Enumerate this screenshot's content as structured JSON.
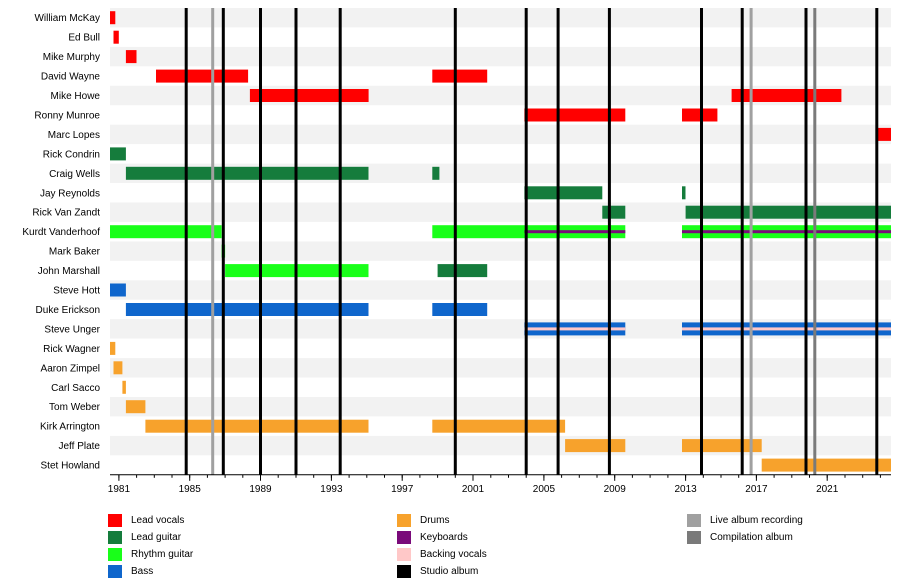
{
  "chart_data": {
    "type": "timeline",
    "x_range": [
      1980.5,
      2024.6
    ],
    "x_ticks": [
      1981,
      1985,
      1989,
      1993,
      1997,
      2001,
      2005,
      2009,
      2013,
      2017,
      2021
    ],
    "x_tick_labels": [
      "1981",
      "1985",
      "1989",
      "1993",
      "1997",
      "2001",
      "2005",
      "2009",
      "2013",
      "2017",
      "2021"
    ],
    "roles": [
      {
        "key": "lead_vocals",
        "label": "Lead vocals",
        "color": "#ff0000"
      },
      {
        "key": "lead_guitar",
        "label": "Lead guitar",
        "color": "#157c3c"
      },
      {
        "key": "rhythm_guitar",
        "label": "Rhythm guitar",
        "color": "#19ff19"
      },
      {
        "key": "bass",
        "label": "Bass",
        "color": "#0f66cc"
      },
      {
        "key": "drums",
        "label": "Drums",
        "color": "#f7a22c"
      },
      {
        "key": "keyboards",
        "label": "Keyboards",
        "color": "#7a0a7a"
      },
      {
        "key": "backing_vocals",
        "label": "Backing vocals",
        "color": "#ffc8c8"
      },
      {
        "key": "studio_album",
        "label": "Studio album",
        "color": "#000000"
      },
      {
        "key": "live_album",
        "label": "Live album recording",
        "color": "#a0a0a0"
      },
      {
        "key": "compilation_album",
        "label": "Compilation album",
        "color": "#7a7a7a"
      }
    ],
    "members": [
      {
        "name": "William McKay",
        "periods": [
          {
            "role": "lead_vocals",
            "from": 1980.5,
            "to": 1980.8
          }
        ]
      },
      {
        "name": "Ed Bull",
        "periods": [
          {
            "role": "lead_vocals",
            "from": 1980.7,
            "to": 1981.0
          }
        ]
      },
      {
        "name": "Mike Murphy",
        "periods": [
          {
            "role": "lead_vocals",
            "from": 1981.4,
            "to": 1982.0
          }
        ]
      },
      {
        "name": "David Wayne",
        "periods": [
          {
            "role": "lead_vocals",
            "from": 1983.1,
            "to": 1988.3
          },
          {
            "role": "lead_vocals",
            "from": 1998.7,
            "to": 2001.8
          }
        ]
      },
      {
        "name": "Mike Howe",
        "periods": [
          {
            "role": "lead_vocals",
            "from": 1988.4,
            "to": 1995.1
          },
          {
            "role": "lead_vocals",
            "from": 2015.6,
            "to": 2021.8
          }
        ]
      },
      {
        "name": "Ronny Munroe",
        "periods": [
          {
            "role": "lead_vocals",
            "from": 2003.9,
            "to": 2009.6
          },
          {
            "role": "lead_vocals",
            "from": 2012.8,
            "to": 2014.8
          }
        ]
      },
      {
        "name": "Marc Lopes",
        "periods": [
          {
            "role": "lead_vocals",
            "from": 2023.8,
            "to": 2024.6
          }
        ]
      },
      {
        "name": "Rick Condrin",
        "periods": [
          {
            "role": "lead_guitar",
            "from": 1980.5,
            "to": 1981.4
          }
        ]
      },
      {
        "name": "Craig Wells",
        "periods": [
          {
            "role": "lead_guitar",
            "from": 1981.4,
            "to": 1995.1
          },
          {
            "role": "lead_guitar",
            "from": 1998.7,
            "to": 1999.1
          }
        ]
      },
      {
        "name": "Jay Reynolds",
        "periods": [
          {
            "role": "lead_guitar",
            "from": 2003.9,
            "to": 2008.3
          },
          {
            "role": "lead_guitar",
            "from": 2012.8,
            "to": 2013.0
          }
        ]
      },
      {
        "name": "Rick Van Zandt",
        "periods": [
          {
            "role": "lead_guitar",
            "from": 2008.3,
            "to": 2009.6
          },
          {
            "role": "lead_guitar",
            "from": 2013.0,
            "to": 2024.6
          }
        ]
      },
      {
        "name": "Kurdt Vanderhoof",
        "periods": [
          {
            "role": "rhythm_guitar",
            "from": 1980.5,
            "to": 1986.8
          },
          {
            "role": "rhythm_guitar",
            "from": 1998.7,
            "to": 2009.6,
            "inner": "keyboards",
            "inner_from": 2003.9
          },
          {
            "role": "rhythm_guitar",
            "from": 2012.8,
            "to": 2024.6,
            "inner": "keyboards"
          }
        ]
      },
      {
        "name": "Mark Baker",
        "periods": [
          {
            "role": "rhythm_guitar",
            "from": 1986.8,
            "to": 1987.0
          }
        ]
      },
      {
        "name": "John Marshall",
        "periods": [
          {
            "role": "rhythm_guitar",
            "from": 1987.0,
            "to": 1995.1
          },
          {
            "role": "lead_guitar",
            "from": 1999.0,
            "to": 2001.8
          }
        ]
      },
      {
        "name": "Steve Hott",
        "periods": [
          {
            "role": "bass",
            "from": 1980.5,
            "to": 1981.4
          }
        ]
      },
      {
        "name": "Duke Erickson",
        "periods": [
          {
            "role": "bass",
            "from": 1981.4,
            "to": 1995.1
          },
          {
            "role": "bass",
            "from": 1998.7,
            "to": 2001.8
          }
        ]
      },
      {
        "name": "Steve Unger",
        "periods": [
          {
            "role": "bass",
            "from": 2003.9,
            "to": 2009.6,
            "inner": "backing_vocals"
          },
          {
            "role": "bass",
            "from": 2012.8,
            "to": 2024.6,
            "inner": "backing_vocals"
          }
        ]
      },
      {
        "name": "Rick Wagner",
        "periods": [
          {
            "role": "drums",
            "from": 1980.5,
            "to": 1980.8
          }
        ]
      },
      {
        "name": "Aaron Zimpel",
        "periods": [
          {
            "role": "drums",
            "from": 1980.7,
            "to": 1981.2
          }
        ]
      },
      {
        "name": "Carl Sacco",
        "periods": [
          {
            "role": "drums",
            "from": 1981.2,
            "to": 1981.4
          }
        ]
      },
      {
        "name": "Tom Weber",
        "periods": [
          {
            "role": "drums",
            "from": 1981.4,
            "to": 1982.5
          }
        ]
      },
      {
        "name": "Kirk Arrington",
        "periods": [
          {
            "role": "drums",
            "from": 1982.5,
            "to": 1995.1
          },
          {
            "role": "drums",
            "from": 1998.7,
            "to": 2006.2
          }
        ]
      },
      {
        "name": "Jeff Plate",
        "periods": [
          {
            "role": "drums",
            "from": 2006.2,
            "to": 2009.6
          },
          {
            "role": "drums",
            "from": 2012.8,
            "to": 2017.3
          }
        ]
      },
      {
        "name": "Stet Howland",
        "periods": [
          {
            "role": "drums",
            "from": 2017.3,
            "to": 2024.6
          }
        ]
      }
    ],
    "studio_albums": [
      1984.8,
      1986.9,
      1989.0,
      1991.0,
      1993.5,
      2000.0,
      2004.0,
      2005.8,
      2008.7,
      2013.9,
      2016.2,
      2019.8,
      2023.8
    ],
    "live_albums": [
      1986.3,
      2016.7
    ],
    "compilation_albums": [
      2020.3
    ]
  }
}
